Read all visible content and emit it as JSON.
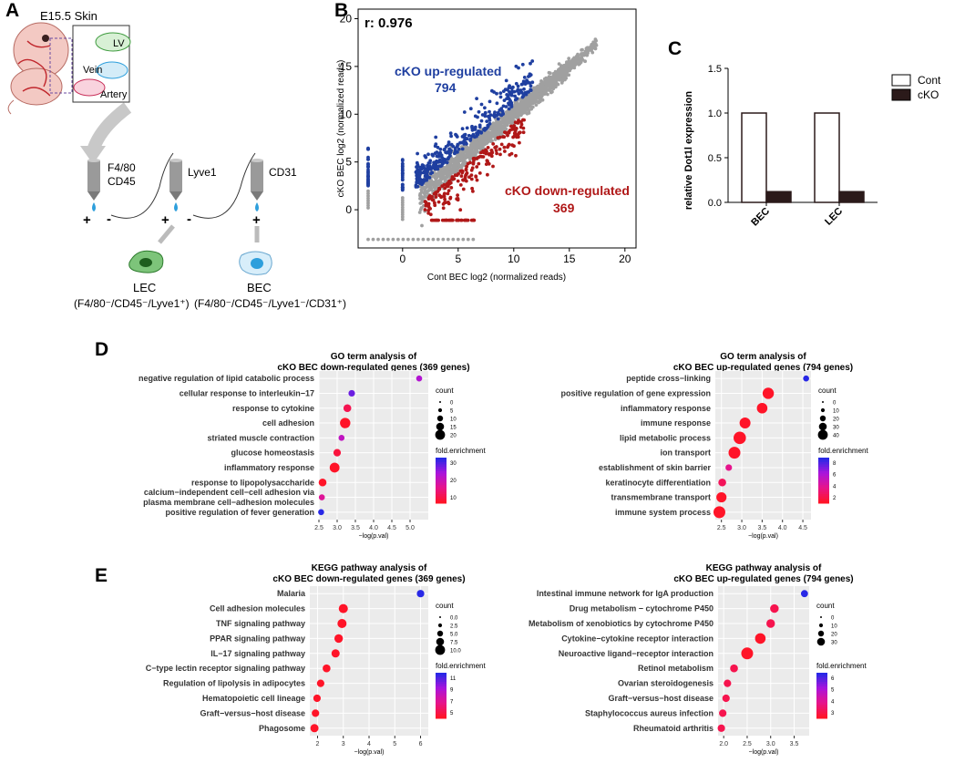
{
  "panel_labels": {
    "a": "A",
    "b": "B",
    "c": "C",
    "d": "D",
    "e": "E"
  },
  "panel_a": {
    "skin_label": "E15.5 Skin",
    "lv_label": "LV",
    "vein_label": "Vein",
    "artery_label": "Artery",
    "col1_label": "F4/80\nCD45",
    "col2_label": "Lyve1",
    "col3_label": "CD31",
    "plus": "+",
    "minus": "-",
    "lec_label": "LEC",
    "lec_markers": "(F4/80⁻/CD45⁻/Lyve1⁺)",
    "bec_label": "BEC",
    "bec_markers": "(F4/80⁻/CD45⁻/Lyve1⁻/CD31⁺)"
  },
  "colors": {
    "blue": "#1f3fa0",
    "red": "#b01818",
    "gray": "#a0a0a0",
    "dark_bar": "#2b1a1a",
    "cell_green": "#3e9b3e",
    "cell_blue": "#2e9fdc"
  },
  "chart_data": [
    {
      "type": "scatter",
      "id": "B",
      "annotation": "r: 0.976",
      "xlabel": "Cont BEC log2 (normalized reads)",
      "ylabel": "cKO BEC log2 (normalized reads)",
      "xlim": [
        -4,
        21
      ],
      "ylim": [
        -4,
        21
      ],
      "xticks": [
        0,
        5,
        10,
        15,
        20
      ],
      "yticks": [
        0,
        5,
        10,
        15,
        20
      ],
      "up_label": "cKO up-regulated",
      "up_count": "794",
      "down_label": "cKO down-regulated",
      "down_count": "369"
    },
    {
      "type": "bar",
      "id": "C",
      "ylabel": "relative Dot1l expression",
      "categories": [
        "BEC",
        "LEC"
      ],
      "series": [
        {
          "name": "Cont",
          "values": [
            1.0,
            1.0
          ]
        },
        {
          "name": "cKO",
          "values": [
            0.12,
            0.12
          ]
        }
      ],
      "ylim": [
        0,
        1.5
      ],
      "yticks": [
        "0.0",
        "0.5",
        "1.0",
        "1.5"
      ]
    },
    {
      "type": "scatter",
      "id": "D-left",
      "title": "GO term analysis of\ncKO BEC down-regulated genes (369 genes)",
      "xlabel": "−log(p.val)",
      "categories": [
        "negative regulation of lipid catabolic process",
        "cellular response to interleukin−17",
        "response to cytokine",
        "cell adhesion",
        "striated muscle contraction",
        "glucose homeostasis",
        "inflammatory response",
        "response to lipopolysaccharide",
        "calcium−independent cell−cell adhesion via\nplasma membrane cell−adhesion molecules",
        "positive regulation of fever generation"
      ],
      "x": [
        5.25,
        3.4,
        3.28,
        3.22,
        3.12,
        3.0,
        2.93,
        2.6,
        2.58,
        2.56
      ],
      "size": [
        2,
        3,
        6,
        15,
        2,
        5,
        13,
        6,
        2,
        2
      ],
      "color_value": [
        22,
        28,
        8,
        4,
        20,
        6,
        4,
        4,
        15,
        33
      ],
      "xlim": [
        2.5,
        5.5
      ],
      "xticks": [
        "2.5",
        "3.0",
        "3.5",
        "4.0",
        "4.5",
        "5.0"
      ],
      "legend_count_title": "count",
      "legend_count": [
        "0",
        "5",
        "10",
        "15",
        "20"
      ],
      "legend_fold_title": "fold.enrichment",
      "legend_fold": [
        "30",
        "20",
        "10"
      ]
    },
    {
      "type": "scatter",
      "id": "D-right",
      "title": "GO term analysis of\ncKO BEC up-regulated genes (794 genes)",
      "xlabel": "−log(p.val)",
      "categories": [
        "peptide cross−linking",
        "positive regulation of gene expression",
        "inflammatory response",
        "immune response",
        "lipid metabolic process",
        "ion transport",
        "establishment of skin barrier",
        "keratinocyte differentiation",
        "transmembrane transport",
        "immune system process"
      ],
      "x": [
        4.58,
        3.65,
        3.5,
        3.08,
        2.95,
        2.82,
        2.68,
        2.52,
        2.5,
        2.45
      ],
      "size": [
        2,
        20,
        16,
        18,
        26,
        22,
        3,
        6,
        14,
        22
      ],
      "color_value": [
        8,
        2,
        2,
        2,
        2,
        2,
        4,
        3,
        2,
        2
      ],
      "xlim": [
        2.35,
        4.7
      ],
      "xticks": [
        "2.5",
        "3.0",
        "3.5",
        "4.0",
        "4.5"
      ],
      "legend_count_title": "count",
      "legend_count": [
        "0",
        "10",
        "20",
        "30",
        "40"
      ],
      "legend_fold_title": "fold.enrichment",
      "legend_fold": [
        "8",
        "6",
        "4",
        "2"
      ]
    },
    {
      "type": "scatter",
      "id": "E-left",
      "title": "KEGG pathway analysis of\ncKO BEC down-regulated genes (369 genes)",
      "xlabel": "−log(p.val)",
      "categories": [
        "Malaria",
        "Cell adhesion molecules",
        "TNF signaling pathway",
        "PPAR signaling pathway",
        "IL−17 signaling pathway",
        "C−type lectin receptor signaling pathway",
        "Regulation of lipolysis in adipocytes",
        "Hematopoietic cell lineage",
        "Graft−versus−host disease",
        "Phagosome"
      ],
      "x": [
        6.0,
        3.0,
        2.95,
        2.82,
        2.7,
        2.35,
        2.12,
        1.98,
        1.92,
        1.88
      ],
      "size": [
        5,
        10,
        10,
        8,
        7,
        6,
        5,
        5,
        5,
        7
      ],
      "color_value": [
        11,
        4,
        4,
        4,
        4,
        4,
        4,
        4,
        4,
        4
      ],
      "xlim": [
        1.7,
        6.3
      ],
      "xticks": [
        "2",
        "3",
        "4",
        "5",
        "6"
      ],
      "legend_count_title": "count",
      "legend_count": [
        "0.0",
        "2.5",
        "5.0",
        "7.5",
        "10.0"
      ],
      "legend_fold_title": "fold.enrichment",
      "legend_fold": [
        "11",
        "9",
        "7",
        "5"
      ]
    },
    {
      "type": "scatter",
      "id": "E-right",
      "title": "KEGG pathway analysis of\ncKO BEC up-regulated genes (794 genes)",
      "xlabel": "−log(p.val)",
      "categories": [
        "Intestinal immune network for IgA production",
        "Drug metabolism − cytochrome P450",
        "Metabolism of xenobiotics by cytochrome P450",
        "Cytokine−cytokine receptor interaction",
        "Neuroactive ligand−receptor interaction",
        "Retinol metabolism",
        "Ovarian steroidogenesis",
        "Graft−versus−host disease",
        "Staphylococcus aureus infection",
        "Rheumatoid arthritis"
      ],
      "x": [
        3.72,
        3.08,
        3.0,
        2.78,
        2.5,
        2.22,
        2.08,
        2.05,
        1.98,
        1.95
      ],
      "size": [
        4,
        8,
        8,
        16,
        22,
        6,
        5,
        5,
        5,
        5
      ],
      "color_value": [
        6,
        2.5,
        2.5,
        2,
        2,
        2.5,
        2.5,
        2.5,
        2.5,
        2.5
      ],
      "xlim": [
        1.88,
        3.82
      ],
      "xticks": [
        "2.0",
        "2.5",
        "3.0",
        "3.5"
      ],
      "legend_count_title": "count",
      "legend_count": [
        "0",
        "10",
        "20",
        "30"
      ],
      "legend_fold_title": "fold.enrichment",
      "legend_fold": [
        "6",
        "5",
        "4",
        "3"
      ]
    }
  ]
}
